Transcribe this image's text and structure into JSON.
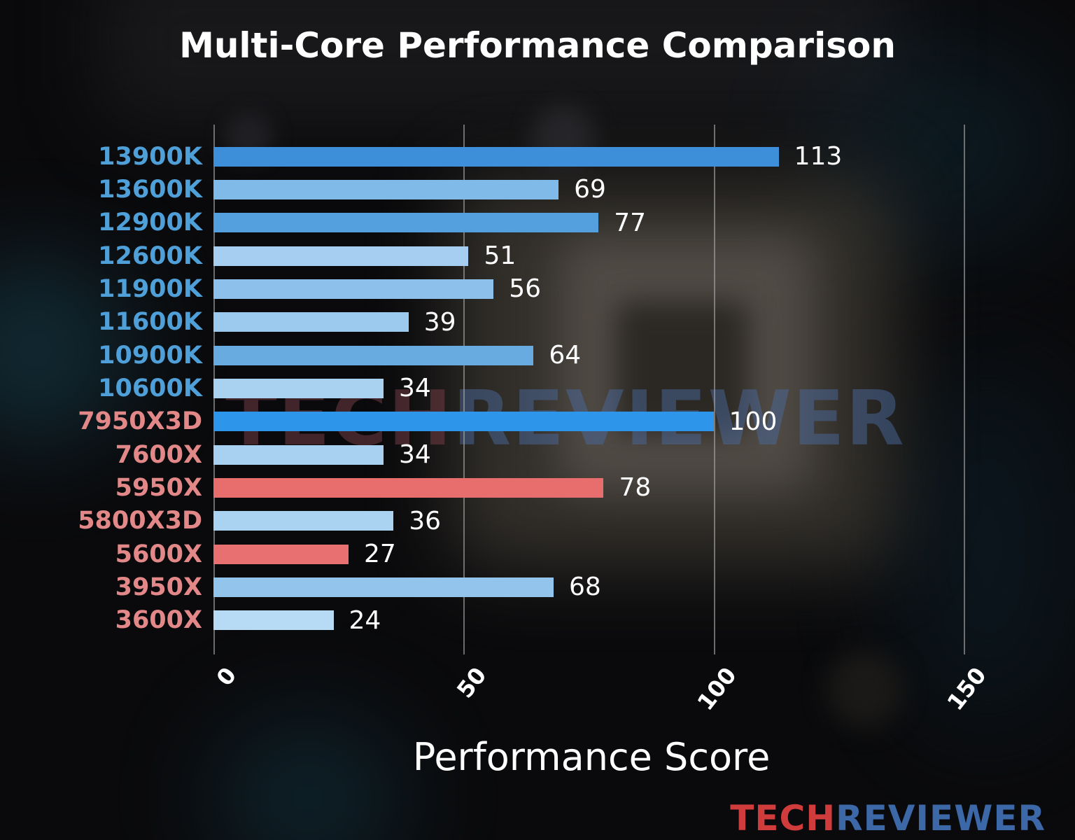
{
  "chart_data": {
    "type": "bar",
    "orientation": "horizontal",
    "title": "Multi-Core Performance Comparison",
    "xlabel": "Performance Score",
    "xlim": [
      0,
      150
    ],
    "xticks": [
      0,
      50,
      100,
      150
    ],
    "grid": "vertical gridlines at xticks",
    "legend": "none",
    "categories": [
      "13900K",
      "13600K",
      "12900K",
      "12600K",
      "11900K",
      "11600K",
      "10900K",
      "10600K",
      "7950X3D",
      "7600X",
      "5950X",
      "5800X3D",
      "5600X",
      "3950X",
      "3600X"
    ],
    "values": [
      113,
      69,
      77,
      51,
      56,
      39,
      64,
      34,
      100,
      34,
      78,
      36,
      27,
      68,
      24
    ],
    "bar_colors": [
      "#3e8fd9",
      "#7fbae8",
      "#549fdd",
      "#a5cef0",
      "#8dc1eb",
      "#9cc9ee",
      "#68abe1",
      "#a9d2f1",
      "#2e96ea",
      "#a7d0f1",
      "#e86e6e",
      "#aad3f2",
      "#e97070",
      "#92c4ec",
      "#b7dbf5"
    ],
    "label_colors": [
      "#4f9fd9",
      "#4f9fd9",
      "#4f9fd9",
      "#4f9fd9",
      "#4f9fd9",
      "#4f9fd9",
      "#4f9fd9",
      "#4f9fd9",
      "#e38888",
      "#e38888",
      "#e38888",
      "#e38888",
      "#e38888",
      "#e38888",
      "#e38888"
    ],
    "value_label_color": "#ffffff",
    "tick_label_color": "#ffffff"
  },
  "watermark": {
    "part1": "TECH",
    "part2": "REVIEWER",
    "part1_color": "#7a4049",
    "part2_color": "#4a699c"
  },
  "logo": {
    "part1": "TECH",
    "part2": "REVIEWER",
    "part1_color": "#d03c3c",
    "part2_color": "#3c68a8"
  }
}
